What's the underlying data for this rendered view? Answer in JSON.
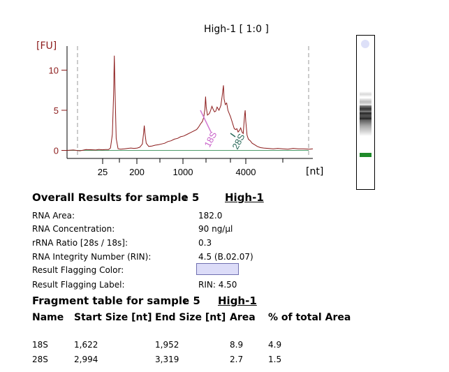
{
  "chart_data": {
    "type": "line",
    "title": "High-1  [ 1:0 ]",
    "ylabel": "[FU]",
    "xlabel": "[nt]",
    "ylim": [
      -1,
      13
    ],
    "y_ticks": [
      0,
      5,
      10
    ],
    "x_tick_labels": [
      "25",
      "200",
      "1000",
      "4000"
    ],
    "peak_labels": [
      "18S",
      "28S"
    ],
    "peak_label_colors": [
      "#c860c8",
      "#2a6a5a"
    ],
    "line_color": "#8b1a1a",
    "series": [
      {
        "values": [
          [
            -40,
            0
          ],
          [
            -30,
            0.05
          ],
          [
            -20,
            -0.05
          ],
          [
            -10,
            0.1
          ],
          [
            0,
            0.08
          ],
          [
            5,
            0.05
          ],
          [
            10,
            0.12
          ],
          [
            15,
            0.08
          ],
          [
            20,
            0.1
          ],
          [
            25,
            0.1
          ],
          [
            28,
            0.3
          ],
          [
            31,
            2.0
          ],
          [
            33,
            7.0
          ],
          [
            34,
            11.8
          ],
          [
            35,
            8.0
          ],
          [
            37,
            1.5
          ],
          [
            40,
            0.2
          ],
          [
            44,
            0.15
          ],
          [
            50,
            0.2
          ],
          [
            55,
            0.25
          ],
          [
            60,
            0.3
          ],
          [
            65,
            0.25
          ],
          [
            70,
            0.3
          ],
          [
            74,
            0.4
          ],
          [
            78,
            0.8
          ],
          [
            80,
            2.2
          ],
          [
            81,
            3.1
          ],
          [
            82,
            2.2
          ],
          [
            84,
            0.9
          ],
          [
            88,
            0.5
          ],
          [
            93,
            0.55
          ],
          [
            98,
            0.65
          ],
          [
            103,
            0.7
          ],
          [
            108,
            0.8
          ],
          [
            113,
            0.9
          ],
          [
            118,
            1.1
          ],
          [
            123,
            1.2
          ],
          [
            128,
            1.4
          ],
          [
            133,
            1.5
          ],
          [
            138,
            1.7
          ],
          [
            143,
            1.8
          ],
          [
            148,
            2.0
          ],
          [
            153,
            2.2
          ],
          [
            158,
            2.4
          ],
          [
            163,
            2.6
          ],
          [
            166,
            2.9
          ],
          [
            169,
            3.3
          ],
          [
            172,
            3.6
          ],
          [
            174,
            4.1
          ],
          [
            176,
            5.2
          ],
          [
            177,
            6.7
          ],
          [
            178,
            5.4
          ],
          [
            180,
            4.4
          ],
          [
            183,
            4.6
          ],
          [
            185,
            5.0
          ],
          [
            187,
            5.5
          ],
          [
            189,
            5.1
          ],
          [
            191,
            4.8
          ],
          [
            193,
            4.9
          ],
          [
            195,
            5.4
          ],
          [
            198,
            5.0
          ],
          [
            201,
            5.6
          ],
          [
            203,
            6.8
          ],
          [
            205,
            8.1
          ],
          [
            206,
            6.4
          ],
          [
            208,
            5.7
          ],
          [
            210,
            5.9
          ],
          [
            212,
            5.0
          ],
          [
            214,
            4.6
          ],
          [
            216,
            4.2
          ],
          [
            218,
            3.7
          ],
          [
            220,
            3.2
          ],
          [
            222,
            2.7
          ],
          [
            224,
            2.6
          ],
          [
            226,
            2.7
          ],
          [
            228,
            2.3
          ],
          [
            230,
            2.5
          ],
          [
            232,
            2.8
          ],
          [
            234,
            2.3
          ],
          [
            236,
            2.1
          ],
          [
            238,
            4.3
          ],
          [
            239,
            5.0
          ],
          [
            240,
            3.6
          ],
          [
            242,
            1.9
          ],
          [
            244,
            1.4
          ],
          [
            247,
            1.2
          ],
          [
            250,
            0.9
          ],
          [
            254,
            0.7
          ],
          [
            258,
            0.5
          ],
          [
            263,
            0.35
          ],
          [
            268,
            0.3
          ],
          [
            275,
            0.25
          ],
          [
            283,
            0.2
          ],
          [
            290,
            0.25
          ],
          [
            298,
            0.2
          ],
          [
            306,
            0.15
          ],
          [
            314,
            0.25
          ],
          [
            322,
            0.2
          ],
          [
            330,
            0.2
          ],
          [
            340,
            0.15
          ],
          [
            345,
            0.2
          ]
        ]
      }
    ]
  },
  "results": {
    "title": "Overall Results for sample 5",
    "colon": ":",
    "sample_name": "High-1",
    "rows": [
      {
        "label": "RNA Area:",
        "value": "182.0"
      },
      {
        "label": "RNA Concentration:",
        "value": "90 ng/µl"
      },
      {
        "label": "rRNA Ratio [28s / 18s]:",
        "value": "0.3"
      },
      {
        "label": "RNA Integrity Number (RIN):",
        "value": "4.5  (B.02.07)"
      },
      {
        "label": "Result Flagging Color:",
        "value": ""
      },
      {
        "label": "Result Flagging Label:",
        "value": "RIN: 4.50"
      }
    ],
    "flag_color": "#dcdcf8"
  },
  "fragment_table": {
    "title": "Fragment table for sample 5",
    "colon": ":",
    "sample_name": "High-1",
    "columns": [
      "Name",
      "Start Size [nt]",
      "End Size [nt]",
      "Area",
      "% of total Area"
    ],
    "rows": [
      [
        "18S",
        "1,622",
        "1,952",
        "8.9",
        "4.9"
      ],
      [
        "28S",
        "2,994",
        "3,319",
        "2.7",
        "1.5"
      ]
    ]
  }
}
